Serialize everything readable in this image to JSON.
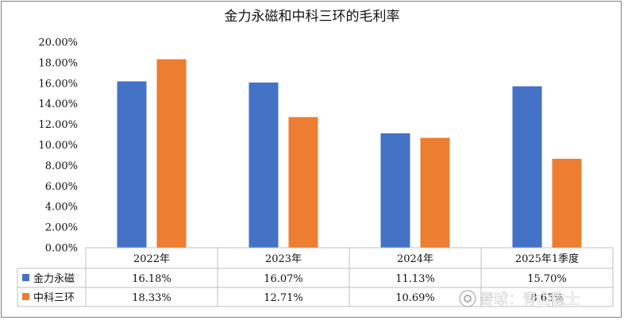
{
  "chart_data": {
    "type": "bar",
    "title": "金力永磁和中科三环的毛利率",
    "categories": [
      "2022年",
      "2023年",
      "2024年",
      "2025年1季度"
    ],
    "series": [
      {
        "name": "金力永磁",
        "values": [
          16.18,
          16.07,
          11.13,
          15.7
        ],
        "labels": [
          "16.18%",
          "16.07%",
          "11.13%",
          "15.70%"
        ],
        "color": "#4472C4"
      },
      {
        "name": "中科三环",
        "values": [
          18.33,
          12.71,
          10.69,
          8.65
        ],
        "labels": [
          "18.33%",
          "12.71%",
          "10.69%",
          "8.65%"
        ],
        "color": "#ED7D31"
      }
    ],
    "yticks": [
      "0.00%",
      "2.00%",
      "4.00%",
      "6.00%",
      "8.00%",
      "10.00%",
      "12.00%",
      "14.00%",
      "16.00%",
      "18.00%",
      "20.00%"
    ],
    "ylim": [
      0,
      20
    ],
    "grid": false,
    "legend": "data-table"
  },
  "watermark": "雪球：青山隐士"
}
